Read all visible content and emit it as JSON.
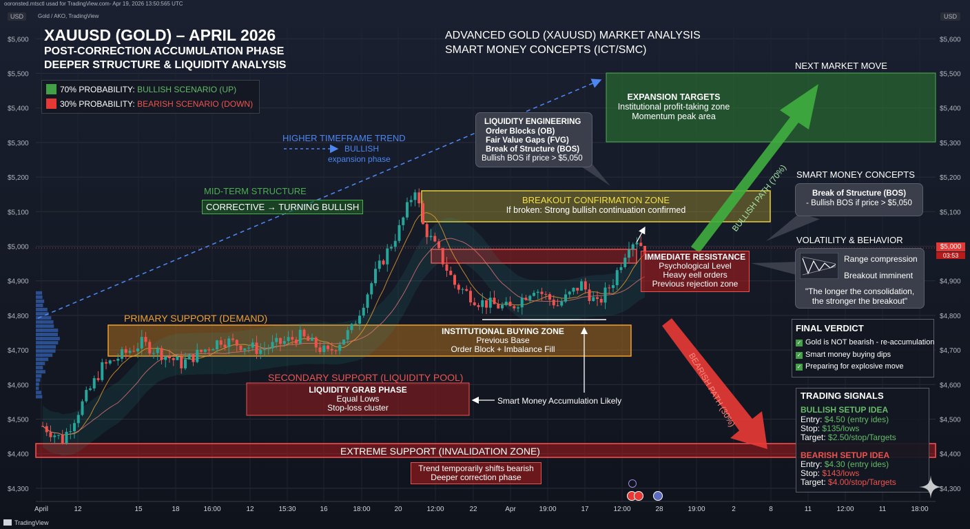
{
  "window": {
    "top_caption": "ooronsted.mtsctl usad for TradingView.com- Apr 19, 2026 13:50:565 UTC",
    "symbol_caption": "Gold / AKO, TradingView",
    "currency_left": "USD",
    "currency_right": "USD",
    "price_tag": "$5,000",
    "price_timer": "03:53",
    "brand": "TradingView"
  },
  "headings": {
    "title": "XAUUSD (GOLD) – APRIL 2026",
    "subtitle1": "POST-CORRECTION ACCUMULATION PHASE",
    "subtitle2": "DEEPER STRUCTURE & LIQUIDITY ANALYSIS",
    "right_title1": "ADVANCED GOLD (XAUUSD) MARKET ANALYSIS",
    "right_title2": "SMART MONEY CONCEPTS (ICT/SMC)"
  },
  "legend": {
    "bull_prefix": "70% PROBABILITY: ",
    "bull_label": "BULLISH SCENARIO (UP)",
    "bear_prefix": "30% PROBABILITY: ",
    "bear_label": "BEARISH SCENARIO (DOWN)"
  },
  "annotations": {
    "htf_title": "HIGHER TIMEFRAME TREND",
    "htf_line2": "BULLISH",
    "htf_line3": "expansion phase",
    "mid_title": "MID-TERM STRUCTURE",
    "mid_box": "CORRECTIVE → TURNING BULLISH",
    "primary_support": "PRIMARY SUPPORT (DEMAND)",
    "ibz_title": "INSTITUTIONAL BUYING ZONE",
    "ibz_line2": "Previous Base",
    "ibz_line3": "Order Block + Imbalance Fill",
    "secondary_support": "SECONDARY SUPPORT (LIQUIDITY POOL)",
    "lg_title": "LIQUIDITY GRAB PHASE",
    "lg_line2": "Equal Lows",
    "lg_line3": "Stop-loss cluster",
    "smart_acc": "Smart Money Accumulation Likely",
    "extreme": "EXTREME SUPPORT (INVALIDATION ZONE)",
    "ext_note1": "Trend temporarily shifts bearish",
    "ext_note2": "Deeper correction phase",
    "le_title": "LIQUIDITY ENGINEERING",
    "le_line2": "Order Blocks (OB)",
    "le_line3": "Fair Value Gaps (FVG)",
    "le_line4": "Break of Structure (BOS)",
    "le_line5": "Bullish BOS if price > $5,050",
    "bcz_title": "BREAKOUT CONFIRMATION ZONE",
    "bcz_line2": "If broken: Strong bullish continuation confirmed",
    "ir_title": "IMMEDIATE RESISTANCE",
    "ir_line2": "Psychological Level",
    "ir_line3": "Heavy eell orders",
    "ir_line4": "Previous rejection zone",
    "next_move": "NEXT MARKET MOVE",
    "exp_title": "EXPANSION TARGETS",
    "exp_line2": "Institutional profit-taking zone",
    "exp_line3": "Momentum peak area",
    "smc_title": "SMART MONEY CONCEPTS",
    "smc_box1": "Break of Structure (BOS)",
    "smc_box2": "- Bullish BOS if price > $5,050",
    "vol_title": "VOLATILITY & BEHAVIOR",
    "vol_line1": "Range compression",
    "vol_line2": "Breakout imminent",
    "vol_quote1": "\"The longer the consolidation,",
    "vol_quote2": "the stronger the breakout\"",
    "bull_path": "BULLISH PATH (70%)",
    "bear_path": "BEARISH PATH (30%)"
  },
  "verdict": {
    "title": "FINAL VERDICT",
    "items": [
      "Gold is NOT bearish - re-accumulation",
      "Smart money buying dips",
      "Preparing for explosive move"
    ]
  },
  "signals": {
    "title": "TRADING SIGNALS",
    "bull_title": "BULLISH SETUP IDEA",
    "bull_entry_label": "Entry: ",
    "bull_entry": "$4.50 (entry ides)",
    "bull_stop_label": "Stop: ",
    "bull_stop": "$135/lows",
    "bull_target_label": "Target: ",
    "bull_target": "$2.50/stop/Targets",
    "bear_title": "BEARISH SETUP IDEA",
    "bear_entry_label": "Entry: ",
    "bear_entry": "$4.30 (entry ides)",
    "bear_stop_label": "Stop: ",
    "bear_stop": "$143/lows",
    "bear_target_label": "Target: ",
    "bear_target": "$4.00/stop/Targets"
  },
  "colors": {
    "background": "#131722",
    "bull": "#26a69a",
    "bear": "#ef5350",
    "green_zone": "#2e7d32",
    "red_zone": "#b71c1c",
    "orange_zone": "#f0a030",
    "yellow_zone": "#e8d040",
    "blue_trend": "#3f7be8"
  },
  "chart_data": {
    "type": "candlestick",
    "symbol": "XAUUSD",
    "y_axis_labels": [
      "$5,600",
      "$5,500",
      "$5,400",
      "$5,300",
      "$5,200",
      "$5,100",
      "$5,000",
      "$4,900",
      "$4,800",
      "$4,700",
      "$4,600",
      "$4,500",
      "$4,400",
      "$4,300"
    ],
    "y_axis_values": [
      5600,
      5500,
      5400,
      5300,
      5200,
      5100,
      5000,
      4900,
      4800,
      4700,
      4600,
      4500,
      4400,
      4300
    ],
    "ylim": [
      4280,
      5640
    ],
    "x_tick_labels": [
      "April",
      "12",
      "15",
      "18",
      "16:00",
      "12",
      "15:30",
      "16",
      "18:00",
      "20",
      "12:00",
      "22",
      "Apr",
      "19:00",
      "17",
      "12:00",
      "28",
      "19:00",
      "2",
      "8",
      "11",
      "12:00",
      "11",
      "18:00"
    ],
    "price_waypoints": [
      {
        "i": 0,
        "p": 4480
      },
      {
        "i": 5,
        "p": 4440
      },
      {
        "i": 15,
        "p": 4650
      },
      {
        "i": 25,
        "p": 4720
      },
      {
        "i": 35,
        "p": 4660
      },
      {
        "i": 45,
        "p": 4730
      },
      {
        "i": 55,
        "p": 4700
      },
      {
        "i": 65,
        "p": 4740
      },
      {
        "i": 72,
        "p": 4690
      },
      {
        "i": 78,
        "p": 4760
      },
      {
        "i": 84,
        "p": 4920
      },
      {
        "i": 90,
        "p": 5050
      },
      {
        "i": 94,
        "p": 5170
      },
      {
        "i": 96,
        "p": 5060
      },
      {
        "i": 100,
        "p": 4980
      },
      {
        "i": 104,
        "p": 4890
      },
      {
        "i": 110,
        "p": 4840
      },
      {
        "i": 118,
        "p": 4820
      },
      {
        "i": 124,
        "p": 4880
      },
      {
        "i": 130,
        "p": 4830
      },
      {
        "i": 136,
        "p": 4890
      },
      {
        "i": 140,
        "p": 4830
      },
      {
        "i": 144,
        "p": 4900
      },
      {
        "i": 148,
        "p": 5010
      },
      {
        "i": 150,
        "p": 5020
      },
      {
        "i": 152,
        "p": 4990
      }
    ],
    "zones": [
      {
        "name": "Expansion Targets",
        "from": 5300,
        "to": 5500
      },
      {
        "name": "Breakout Confirmation Zone",
        "from": 5070,
        "to": 5160
      },
      {
        "name": "Immediate Resistance",
        "from": 4965,
        "to": 5005
      },
      {
        "name": "Primary Support (Demand)",
        "from": 4685,
        "to": 4775
      },
      {
        "name": "Secondary Support (Liquidity Pool)",
        "from": 4510,
        "to": 4600
      },
      {
        "name": "Extreme Support (Invalidation Zone)",
        "from": 4390,
        "to": 4430
      }
    ],
    "scenarios": [
      {
        "name": "BULLISH PATH (70%)",
        "probability": 70
      },
      {
        "name": "BEARISH PATH (30%)",
        "probability": 30
      }
    ],
    "current_price": 5000
  }
}
